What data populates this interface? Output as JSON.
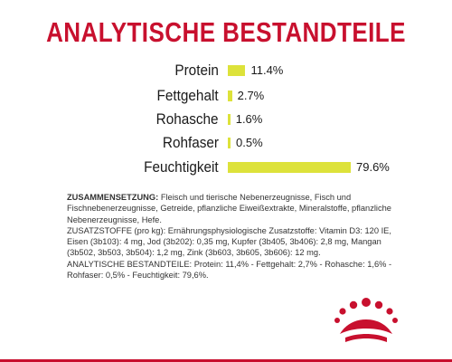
{
  "header": {
    "title": "ANALYTISCHE BESTANDTEILE"
  },
  "chart_data": {
    "type": "bar",
    "categories": [
      "Protein",
      "Fettgehalt",
      "Rohasche",
      "Rohfaser",
      "Feuchtigkeit"
    ],
    "values": [
      11.4,
      2.7,
      1.6,
      0.5,
      79.6
    ],
    "value_labels": [
      "11.4%",
      "2.7%",
      "1.6%",
      "0.5%",
      "79.6%"
    ],
    "bar_color": "#dde23a"
  },
  "composition": {
    "heading1": "ZUSAMMENSETZUNG:",
    "text1": " Fleisch und tierische Nebenerzeugnisse, Fisch und Fischnebenerzeugnisse, Getreide, pflanzliche Eiweißextrakte, Mineralstoffe, pflanzliche Nebenerzeugnisse, Hefe.",
    "heading2": "ZUSATZSTOFFE (pro kg):",
    "text2": " Ernährungsphysiologische Zusatzstoffe: Vitamin D3: 120 IE, Eisen (3b103): 4 mg, Jod (3b202): 0,35 mg, Kupfer (3b405, 3b406): 2,8 mg, Mangan (3b502, 3b503, 3b504): 1,2 mg, Zink (3b603, 3b605, 3b606): 12 mg.",
    "heading3": "ANALYTISCHE BESTANDTEILE:",
    "text3": " Protein: 11,4% - Fettgehalt: 2,7% - Rohasche: 1,6% - Rohfaser: 0,5% - Feuchtigkeit: 79,6%."
  },
  "colors": {
    "brand_red": "#c8102e",
    "bar_yellow": "#dde23a"
  },
  "logo": {
    "icon": "crown-icon"
  }
}
